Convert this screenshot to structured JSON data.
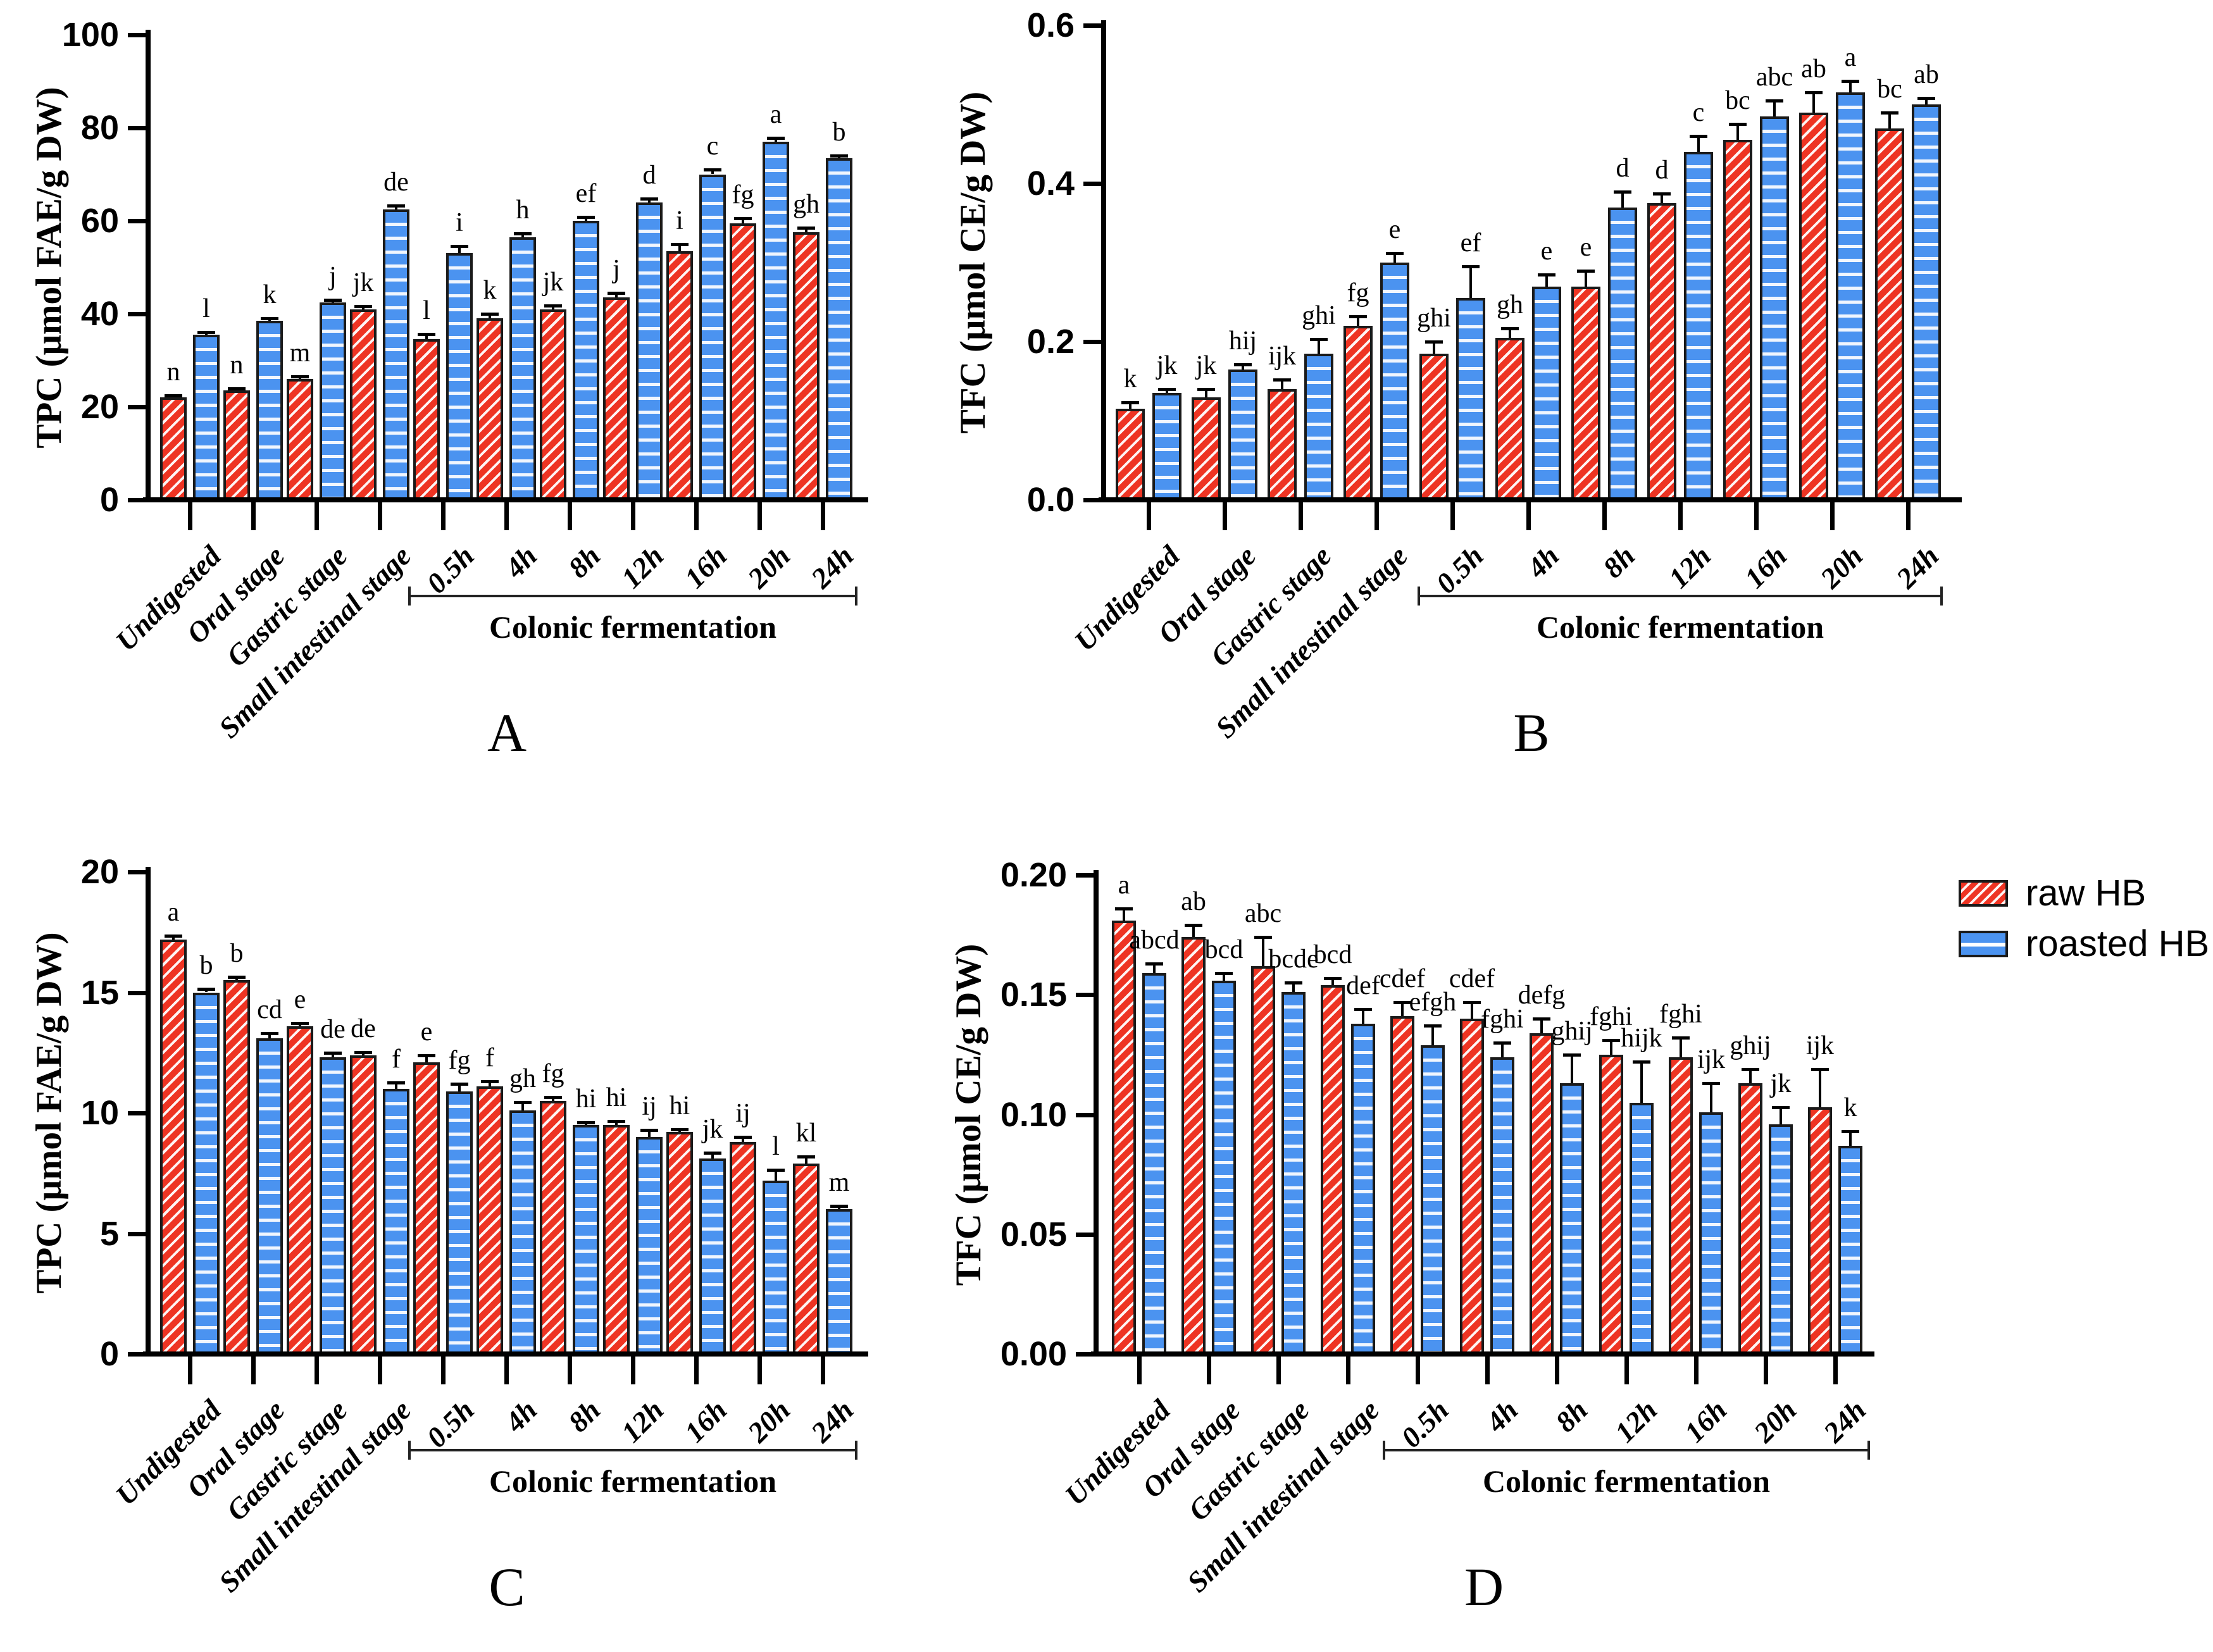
{
  "legend": {
    "items": [
      {
        "label": "raw HB",
        "color": "#ee3423",
        "pattern": "diagonal-white-stripes"
      },
      {
        "label": "roasted HB",
        "color": "#4b93f0",
        "pattern": "horizontal-white-stripes"
      }
    ]
  },
  "chart_data": [
    {
      "type": "bar",
      "panel_label": "A",
      "ylabel": "TPC (μmol FAE/g DW)",
      "ylim": [
        0,
        100
      ],
      "ytick_labels": [
        "0",
        "20",
        "40",
        "60",
        "80",
        "100"
      ],
      "grid": false,
      "legend_position": "outside-right",
      "categories": [
        "Undigested",
        "Oral stage",
        "Gastric stage",
        "Small intestinal stage",
        "0.5h",
        "4h",
        "8h",
        "12h",
        "16h",
        "20h",
        "24h"
      ],
      "bracket": {
        "label": "Colonic fermentation",
        "from_index": 4,
        "to_index": 10
      },
      "series": [
        {
          "name": "raw HB",
          "values": [
            22,
            23.5,
            26,
            41,
            34.5,
            39,
            41,
            43.5,
            53.5,
            59.5,
            57.5
          ],
          "errors": [
            0.5,
            0.5,
            0.5,
            0.6,
            1.2,
            1.0,
            0.8,
            1.0,
            1.5,
            1.0,
            1.0
          ],
          "letters": [
            "n",
            "n",
            "m",
            "jk",
            "l",
            "k",
            "jk",
            "j",
            "i",
            "fg",
            "gh"
          ]
        },
        {
          "name": "roasted HB",
          "values": [
            35.5,
            38.5,
            42.5,
            62.5,
            53,
            56.5,
            60,
            64,
            70,
            77,
            73.5
          ],
          "errors": [
            0.5,
            0.5,
            0.5,
            0.8,
            1.5,
            0.8,
            0.8,
            0.8,
            1.0,
            0.8,
            0.5
          ],
          "letters": [
            "l",
            "k",
            "j",
            "de",
            "i",
            "h",
            "ef",
            "d",
            "c",
            "a",
            "b"
          ]
        }
      ]
    },
    {
      "type": "bar",
      "panel_label": "B",
      "ylabel": "TFC (μmol CE/g DW)",
      "ylim": [
        0,
        0.6
      ],
      "ytick_labels": [
        "0.0",
        "0.2",
        "0.4",
        "0.6"
      ],
      "grid": false,
      "categories": [
        "Undigested",
        "Oral stage",
        "Gastric stage",
        "Small intestinal stage",
        "0.5h",
        "4h",
        "8h",
        "12h",
        "16h",
        "20h",
        "24h"
      ],
      "bracket": {
        "label": "Colonic fermentation",
        "from_index": 4,
        "to_index": 10
      },
      "series": [
        {
          "name": "raw HB",
          "values": [
            0.115,
            0.13,
            0.14,
            0.22,
            0.185,
            0.205,
            0.27,
            0.375,
            0.455,
            0.49,
            0.47
          ],
          "errors": [
            0.008,
            0.01,
            0.012,
            0.012,
            0.015,
            0.012,
            0.02,
            0.012,
            0.02,
            0.025,
            0.02
          ],
          "letters": [
            "k",
            "jk",
            "ijk",
            "fg",
            "ghi",
            "gh",
            "e",
            "d",
            "bc",
            "ab",
            "bc"
          ]
        },
        {
          "name": "roasted HB",
          "values": [
            0.135,
            0.165,
            0.185,
            0.3,
            0.255,
            0.27,
            0.37,
            0.44,
            0.485,
            0.515,
            0.5
          ],
          "errors": [
            0.005,
            0.006,
            0.018,
            0.012,
            0.04,
            0.015,
            0.02,
            0.02,
            0.02,
            0.015,
            0.008
          ],
          "letters": [
            "jk",
            "hij",
            "ghi",
            "e",
            "ef",
            "e",
            "d",
            "c",
            "abc",
            "a",
            "ab"
          ]
        }
      ]
    },
    {
      "type": "bar",
      "panel_label": "C",
      "ylabel": "TPC (μmol FAE/g DW)",
      "ylim": [
        0,
        20
      ],
      "ytick_labels": [
        "0",
        "5",
        "10",
        "15",
        "20"
      ],
      "grid": false,
      "categories": [
        "Undigested",
        "Oral stage",
        "Gastric stage",
        "Small intestinal stage",
        "0.5h",
        "4h",
        "8h",
        "12h",
        "16h",
        "20h",
        "24h"
      ],
      "bracket": {
        "label": "Colonic fermentation",
        "from_index": 4,
        "to_index": 10
      },
      "series": [
        {
          "name": "raw HB",
          "values": [
            17.2,
            15.5,
            13.6,
            12.4,
            12.1,
            11.1,
            10.5,
            9.5,
            9.2,
            8.8,
            7.9
          ],
          "errors": [
            0.15,
            0.15,
            0.12,
            0.12,
            0.3,
            0.2,
            0.15,
            0.15,
            0.12,
            0.2,
            0.3
          ],
          "letters": [
            "a",
            "b",
            "e",
            "de",
            "e",
            "f",
            "fg",
            "hi",
            "hi",
            "ij",
            "kl"
          ]
        },
        {
          "name": "roasted HB",
          "values": [
            15.0,
            13.1,
            12.3,
            11.0,
            10.9,
            10.1,
            9.5,
            9.0,
            8.1,
            7.2,
            6.0
          ],
          "errors": [
            0.15,
            0.2,
            0.2,
            0.25,
            0.3,
            0.35,
            0.1,
            0.3,
            0.25,
            0.45,
            0.15
          ],
          "letters": [
            "b",
            "cd",
            "de",
            "f",
            "fg",
            "gh",
            "hi",
            "ij",
            "jk",
            "l",
            "m"
          ]
        }
      ]
    },
    {
      "type": "bar",
      "panel_label": "D",
      "ylabel": "TFC (μmol CE/g DW)",
      "ylim": [
        0,
        0.2
      ],
      "ytick_labels": [
        "0.00",
        "0.05",
        "0.10",
        "0.15",
        "0.20"
      ],
      "grid": false,
      "categories": [
        "Undigested",
        "Oral stage",
        "Gastric stage",
        "Small intestinal stage",
        "0.5h",
        "4h",
        "8h",
        "12h",
        "16h",
        "20h",
        "24h"
      ],
      "bracket": {
        "label": "Colonic fermentation",
        "from_index": 4,
        "to_index": 10
      },
      "series": [
        {
          "name": "raw HB",
          "values": [
            0.181,
            0.174,
            0.162,
            0.154,
            0.141,
            0.14,
            0.134,
            0.125,
            0.124,
            0.113,
            0.103
          ],
          "errors": [
            0.005,
            0.005,
            0.012,
            0.003,
            0.006,
            0.007,
            0.006,
            0.006,
            0.008,
            0.006,
            0.016
          ],
          "letters": [
            "a",
            "ab",
            "abc",
            "bcd",
            "cdef",
            "cdef",
            "defg",
            "fghi",
            "fghi",
            "ghij",
            "ijk"
          ]
        },
        {
          "name": "roasted HB",
          "values": [
            0.159,
            0.156,
            0.151,
            0.138,
            0.129,
            0.124,
            0.113,
            0.105,
            0.101,
            0.096,
            0.087
          ],
          "errors": [
            0.004,
            0.003,
            0.004,
            0.006,
            0.008,
            0.006,
            0.012,
            0.017,
            0.012,
            0.007,
            0.006
          ],
          "letters": [
            "abcd",
            "bcd",
            "bcde",
            "def",
            "efgh",
            "fghi",
            "ghij",
            "hijk",
            "ijk",
            "jk",
            "k"
          ]
        }
      ]
    }
  ]
}
